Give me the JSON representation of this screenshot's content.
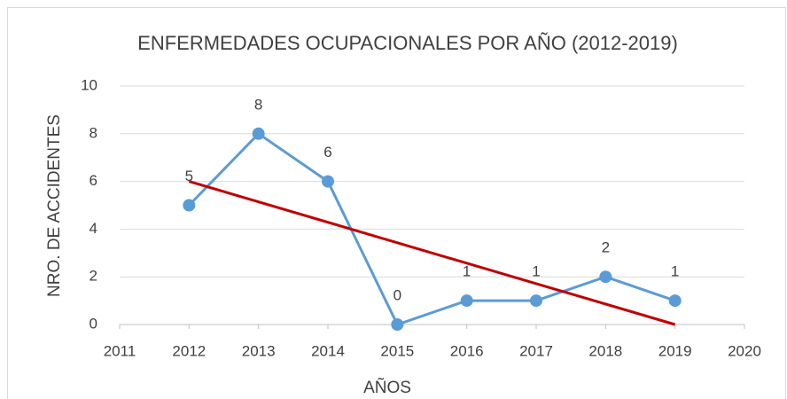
{
  "chart_data": {
    "type": "line",
    "title": "ENFERMEDADES OCUPACIONALES POR AÑO (2012-2019)",
    "x_label": "AÑOS",
    "y_label": "NRO. DE ACCIDENTES",
    "x": [
      2012,
      2013,
      2014,
      2015,
      2016,
      2017,
      2018,
      2019
    ],
    "series": [
      {
        "color": "#5b9bd5",
        "values": [
          5,
          8,
          6,
          0,
          1,
          1,
          2,
          1
        ]
      }
    ],
    "trendline": {
      "color": "#c00000",
      "x": [
        2012,
        2019
      ],
      "values": [
        6,
        0
      ]
    },
    "xlim": [
      2011,
      2020
    ],
    "xticks": [
      2011,
      2012,
      2013,
      2014,
      2015,
      2016,
      2017,
      2018,
      2019,
      2020
    ],
    "ylim": [
      0,
      10
    ],
    "yticks": [
      0,
      2,
      4,
      6,
      8,
      10
    ],
    "grid": true
  }
}
